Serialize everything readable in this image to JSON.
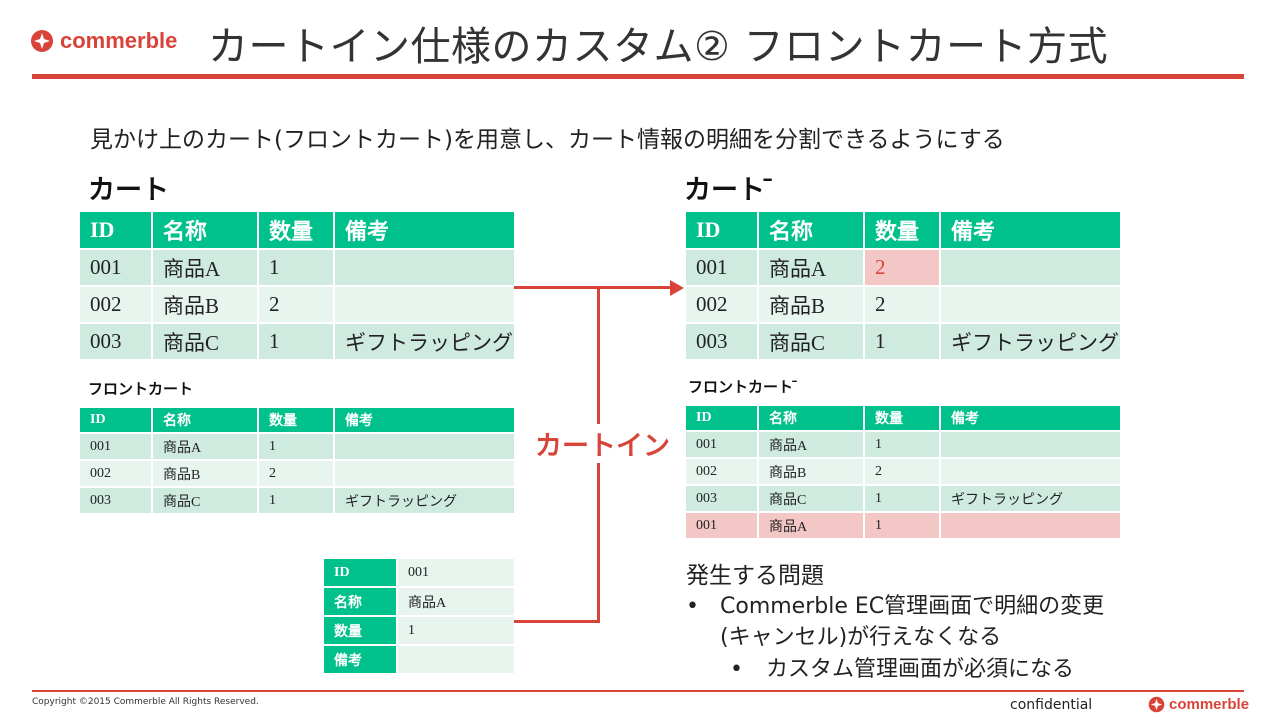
{
  "header": {
    "brand": "commerble",
    "title": "カートイン仕様のカスタム② フロントカート方式"
  },
  "subtitle": "見かけ上のカート(フロントカート)を用意し、カート情報の明細を分割できるようにする",
  "left": {
    "cart_heading": "カート",
    "front_heading": "フロントカート",
    "columns": [
      "ID",
      "名称",
      "数量",
      "備考"
    ],
    "cart_rows": [
      [
        "001",
        "商品A",
        "1",
        ""
      ],
      [
        "002",
        "商品B",
        "2",
        ""
      ],
      [
        "003",
        "商品C",
        "1",
        "ギフトラッピング"
      ]
    ],
    "front_rows": [
      [
        "001",
        "商品A",
        "1",
        ""
      ],
      [
        "002",
        "商品B",
        "2",
        ""
      ],
      [
        "003",
        "商品C",
        "1",
        "ギフトラッピング"
      ]
    ]
  },
  "right": {
    "cart_heading": "カート ̄",
    "front_heading": "フロントカート ̄",
    "columns": [
      "ID",
      "名称",
      "数量",
      "備考"
    ],
    "cart_rows": [
      [
        "001",
        "商品A",
        "2",
        ""
      ],
      [
        "002",
        "商品B",
        "2",
        ""
      ],
      [
        "003",
        "商品C",
        "1",
        "ギフトラッピング"
      ]
    ],
    "front_rows": [
      [
        "001",
        "商品A",
        "1",
        ""
      ],
      [
        "002",
        "商品B",
        "2",
        ""
      ],
      [
        "003",
        "商品C",
        "1",
        "ギフトラッピング"
      ],
      [
        "001",
        "商品A",
        "1",
        ""
      ]
    ]
  },
  "cart_in_label": "カートイン",
  "detail_card": [
    {
      "key": "ID",
      "value": "001"
    },
    {
      "key": "名称",
      "value": "商品A"
    },
    {
      "key": "数量",
      "value": "1"
    },
    {
      "key": "備考",
      "value": ""
    }
  ],
  "problems": {
    "heading": "発生する問題",
    "bullet1": "Commerble EC管理画面で明細の変更",
    "bullet1_cont": "(キャンセル)が行えなくなる",
    "sub_bullet": "カスタム管理画面が必須になる",
    "bullet_glyph": "•"
  },
  "footer": {
    "copyright": "Copyright ©2015 Commerble All Rights Reserved.",
    "confidential": "confidential",
    "brand": "commerble"
  },
  "colors": {
    "accent": "#d9443a",
    "table_header": "#00c08b",
    "row_dark": "#cfeadf",
    "row_light": "#e8f4ee",
    "highlight": "#f4c7c7"
  }
}
